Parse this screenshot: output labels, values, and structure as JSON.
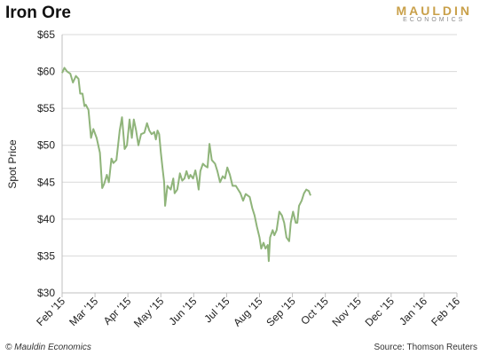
{
  "header": {
    "title": "Iron Ore",
    "brand_main": "MAULDIN",
    "brand_sub": "ECONOMICS"
  },
  "footer": {
    "copyright": "© Mauldin Economics",
    "source": "Source: Thomson  Reuters"
  },
  "colors": {
    "line": "#8fb47a",
    "grid": "#d9d9d9",
    "axis": "#bfbfbf",
    "brand": "#c9a04a"
  },
  "chart_data": {
    "type": "line",
    "title": "Iron Ore",
    "xlabel": "",
    "ylabel": "Spot Price",
    "ylim": [
      30,
      65
    ],
    "y_ticks": [
      "$30",
      "$35",
      "$40",
      "$45",
      "$50",
      "$55",
      "$60",
      "$65"
    ],
    "x_ticks": [
      "Feb '15",
      "Mar '15",
      "Apr '15",
      "May '15",
      "Jun '15",
      "Jul '15",
      "Aug '15",
      "Sep '15",
      "Oct '15",
      "Nov '15",
      "Dec '15",
      "Jan '16",
      "Feb '16"
    ],
    "grid": true,
    "legend": "none",
    "series": [
      {
        "values": [
          [
            0,
            59.8
          ],
          [
            0.07,
            60.5
          ],
          [
            0.15,
            60.0
          ],
          [
            0.25,
            59.7
          ],
          [
            0.33,
            58.5
          ],
          [
            0.42,
            59.4
          ],
          [
            0.5,
            59.0
          ],
          [
            0.55,
            57.0
          ],
          [
            0.62,
            57.0
          ],
          [
            0.68,
            55.3
          ],
          [
            0.72,
            55.5
          ],
          [
            0.8,
            54.8
          ],
          [
            0.88,
            51.0
          ],
          [
            0.95,
            52.2
          ],
          [
            1.05,
            51.0
          ],
          [
            1.15,
            49.0
          ],
          [
            1.22,
            44.2
          ],
          [
            1.28,
            44.8
          ],
          [
            1.36,
            46.0
          ],
          [
            1.42,
            45.0
          ],
          [
            1.5,
            48.2
          ],
          [
            1.56,
            47.6
          ],
          [
            1.65,
            48.0
          ],
          [
            1.75,
            52.0
          ],
          [
            1.82,
            53.8
          ],
          [
            1.9,
            49.5
          ],
          [
            1.97,
            50.0
          ],
          [
            2.05,
            53.5
          ],
          [
            2.12,
            51.0
          ],
          [
            2.18,
            53.5
          ],
          [
            2.25,
            52.0
          ],
          [
            2.32,
            50.0
          ],
          [
            2.4,
            51.5
          ],
          [
            2.5,
            51.7
          ],
          [
            2.58,
            53.0
          ],
          [
            2.65,
            52.0
          ],
          [
            2.72,
            51.5
          ],
          [
            2.8,
            51.8
          ],
          [
            2.85,
            50.8
          ],
          [
            2.9,
            52.0
          ],
          [
            2.95,
            51.5
          ],
          [
            3.0,
            49.0
          ],
          [
            3.05,
            47.0
          ],
          [
            3.1,
            45.0
          ],
          [
            3.13,
            41.8
          ],
          [
            3.2,
            44.5
          ],
          [
            3.3,
            44.0
          ],
          [
            3.38,
            45.5
          ],
          [
            3.42,
            43.5
          ],
          [
            3.5,
            44.0
          ],
          [
            3.58,
            46.2
          ],
          [
            3.65,
            45.2
          ],
          [
            3.72,
            45.5
          ],
          [
            3.78,
            46.5
          ],
          [
            3.85,
            45.5
          ],
          [
            3.9,
            46.0
          ],
          [
            3.98,
            45.5
          ],
          [
            4.05,
            46.6
          ],
          [
            4.1,
            45.5
          ],
          [
            4.15,
            44.0
          ],
          [
            4.2,
            46.5
          ],
          [
            4.28,
            47.5
          ],
          [
            4.35,
            47.2
          ],
          [
            4.42,
            47.0
          ],
          [
            4.48,
            50.2
          ],
          [
            4.55,
            48.0
          ],
          [
            4.65,
            47.5
          ],
          [
            4.72,
            46.5
          ],
          [
            4.8,
            45.0
          ],
          [
            4.88,
            45.8
          ],
          [
            4.95,
            45.5
          ],
          [
            5.02,
            47.0
          ],
          [
            5.1,
            46.0
          ],
          [
            5.18,
            44.5
          ],
          [
            5.28,
            44.5
          ],
          [
            5.35,
            44.0
          ],
          [
            5.42,
            43.5
          ],
          [
            5.5,
            42.5
          ],
          [
            5.58,
            43.4
          ],
          [
            5.7,
            43.0
          ],
          [
            5.78,
            41.5
          ],
          [
            5.85,
            40.5
          ],
          [
            5.92,
            39.0
          ],
          [
            6.0,
            37.5
          ],
          [
            6.05,
            36.0
          ],
          [
            6.12,
            36.8
          ],
          [
            6.18,
            36.0
          ],
          [
            6.25,
            36.5
          ],
          [
            6.28,
            34.3
          ],
          [
            6.32,
            37.5
          ],
          [
            6.4,
            38.5
          ],
          [
            6.45,
            37.8
          ],
          [
            6.52,
            38.5
          ],
          [
            6.6,
            41.0
          ],
          [
            6.68,
            40.5
          ],
          [
            6.75,
            39.5
          ],
          [
            6.82,
            37.5
          ],
          [
            6.9,
            37.0
          ],
          [
            6.95,
            39.5
          ],
          [
            7.02,
            41.0
          ],
          [
            7.1,
            39.5
          ],
          [
            7.15,
            39.5
          ],
          [
            7.2,
            41.8
          ],
          [
            7.28,
            42.5
          ],
          [
            7.35,
            43.5
          ],
          [
            7.42,
            44.0
          ],
          [
            7.5,
            43.8
          ],
          [
            7.55,
            43.2
          ]
        ]
      }
    ]
  }
}
